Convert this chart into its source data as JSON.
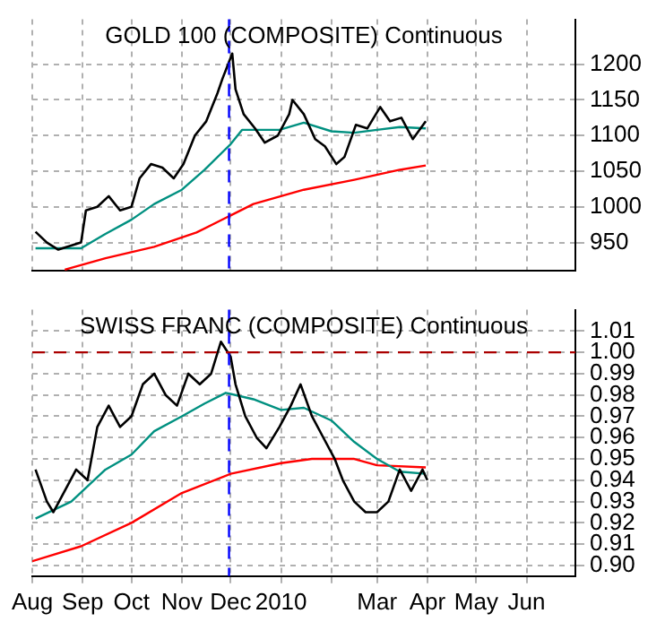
{
  "chart_data": [
    {
      "type": "line",
      "title": "GOLD 100 (COMPOSITE) Continuous",
      "xlim": [
        "2009-08-01",
        "2010-07-01"
      ],
      "ylim": [
        910,
        1263
      ],
      "yticks": [
        950,
        1000,
        1050,
        1100,
        1150,
        1200
      ],
      "xticks": [
        {
          "value": "2009-08-01",
          "label": null
        },
        {
          "value": "2009-09-01",
          "label": null
        },
        {
          "value": "2009-10-01",
          "label": null
        },
        {
          "value": "2009-11-01",
          "label": null
        },
        {
          "value": "2009-12-01",
          "label": null
        },
        {
          "value": "2010-01-01",
          "label": null
        },
        {
          "value": "2010-02-01",
          "label": null
        },
        {
          "value": "2010-03-01",
          "label": null
        },
        {
          "value": "2010-04-01",
          "label": null
        },
        {
          "value": "2010-05-01",
          "label": null
        },
        {
          "value": "2010-06-01",
          "label": null
        }
      ],
      "tick_labels": "y",
      "grid": true,
      "legend": false,
      "marker": "none",
      "series": [
        {
          "color": "#000000",
          "x": [
            "2009-08-03",
            "2009-08-10",
            "2009-08-17",
            "2009-08-24",
            "2009-08-31",
            "2009-09-03",
            "2009-09-10",
            "2009-09-17",
            "2009-09-24",
            "2009-10-01",
            "2009-10-06",
            "2009-10-13",
            "2009-10-20",
            "2009-10-27",
            "2009-11-02",
            "2009-11-09",
            "2009-11-16",
            "2009-11-23",
            "2009-11-26",
            "2009-12-02",
            "2009-12-04",
            "2009-12-09",
            "2009-12-16",
            "2009-12-22",
            "2009-12-30",
            "2010-01-06",
            "2010-01-08",
            "2010-01-15",
            "2010-01-22",
            "2010-01-28",
            "2010-02-04",
            "2010-02-09",
            "2010-02-16",
            "2010-02-23",
            "2010-03-03",
            "2010-03-09",
            "2010-03-16",
            "2010-03-23",
            "2010-03-31"
          ],
          "values": [
            965,
            950,
            940,
            945,
            950,
            995,
            1000,
            1015,
            995,
            1000,
            1040,
            1060,
            1055,
            1040,
            1060,
            1100,
            1120,
            1160,
            1180,
            1215,
            1165,
            1130,
            1110,
            1090,
            1100,
            1130,
            1150,
            1130,
            1095,
            1085,
            1060,
            1070,
            1115,
            1110,
            1140,
            1120,
            1125,
            1095,
            1120
          ]
        },
        {
          "color": "#009080",
          "x": [
            "2009-08-03",
            "2009-08-31",
            "2009-09-15",
            "2009-10-01",
            "2009-10-15",
            "2009-11-01",
            "2009-11-15",
            "2009-12-01",
            "2009-12-08",
            "2009-12-31",
            "2010-01-15",
            "2010-02-01",
            "2010-02-15",
            "2010-03-01",
            "2010-03-15",
            "2010-03-31"
          ],
          "values": [
            942,
            942,
            962,
            982,
            1004,
            1024,
            1052,
            1088,
            1108,
            1108,
            1118,
            1106,
            1104,
            1108,
            1112,
            1110
          ]
        },
        {
          "color": "#ff0000",
          "x": [
            "2009-08-21",
            "2009-09-15",
            "2009-10-15",
            "2009-11-10",
            "2009-12-01",
            "2009-12-15",
            "2010-01-15",
            "2010-02-15",
            "2010-03-15",
            "2010-03-31"
          ],
          "values": [
            912,
            928,
            944,
            964,
            988,
            1004,
            1024,
            1038,
            1052,
            1058
          ]
        }
      ],
      "ref_lines": [
        {
          "axis": "x",
          "value": "2009-11-30",
          "color": "#0000ff",
          "line_style": "dashed"
        }
      ]
    },
    {
      "type": "line",
      "title": "SWISS FRANC (COMPOSITE) Continuous",
      "xlim": [
        "2009-08-01",
        "2010-07-01"
      ],
      "ylim": [
        0.895,
        1.02
      ],
      "yticks": [
        {
          "value": 0.9,
          "label": "0.90"
        },
        0.91,
        0.92,
        0.93,
        0.94,
        0.95,
        0.96,
        0.97,
        0.98,
        0.99,
        {
          "value": 1,
          "label": "1.00"
        },
        1.01
      ],
      "xticks": [
        {
          "value": "2009-08-01",
          "label": "Aug"
        },
        {
          "value": "2009-09-01",
          "label": "Sep"
        },
        {
          "value": "2009-10-01",
          "label": "Oct"
        },
        {
          "value": "2009-11-01",
          "label": "Nov"
        },
        {
          "value": "2009-12-01",
          "label": "Dec"
        },
        {
          "value": "2010-01-01",
          "label": "2010"
        },
        {
          "value": "2010-02-01",
          "label": null
        },
        {
          "value": "2010-03-01",
          "label": "Mar"
        },
        {
          "value": "2010-04-01",
          "label": "Apr"
        },
        {
          "value": "2010-05-01",
          "label": "May"
        },
        {
          "value": "2010-06-01",
          "label": "Jun"
        }
      ],
      "grid": true,
      "legend": false,
      "marker": "none",
      "series": [
        {
          "color": "#000000",
          "x": [
            "2009-08-03",
            "2009-08-10",
            "2009-08-14",
            "2009-08-21",
            "2009-08-28",
            "2009-09-04",
            "2009-09-10",
            "2009-09-17",
            "2009-09-24",
            "2009-10-01",
            "2009-10-08",
            "2009-10-15",
            "2009-10-22",
            "2009-10-29",
            "2009-11-05",
            "2009-11-12",
            "2009-11-19",
            "2009-11-25",
            "2009-12-01",
            "2009-12-04",
            "2009-12-10",
            "2009-12-17",
            "2009-12-23",
            "2009-12-31",
            "2010-01-07",
            "2010-01-13",
            "2010-01-20",
            "2010-01-27",
            "2010-02-03",
            "2010-02-08",
            "2010-02-15",
            "2010-02-22",
            "2010-03-01",
            "2010-03-08",
            "2010-03-15",
            "2010-03-22",
            "2010-03-29",
            "2010-04-01"
          ],
          "values": [
            0.945,
            0.93,
            0.925,
            0.935,
            0.945,
            0.94,
            0.965,
            0.975,
            0.965,
            0.97,
            0.985,
            0.99,
            0.98,
            0.975,
            0.99,
            0.985,
            0.99,
            1.005,
            0.998,
            0.985,
            0.97,
            0.96,
            0.955,
            0.965,
            0.975,
            0.985,
            0.97,
            0.96,
            0.95,
            0.94,
            0.93,
            0.925,
            0.925,
            0.93,
            0.945,
            0.935,
            0.945,
            0.94
          ]
        },
        {
          "color": "#009080",
          "x": [
            "2009-08-03",
            "2009-08-25",
            "2009-09-15",
            "2009-10-01",
            "2009-10-15",
            "2009-11-01",
            "2009-11-15",
            "2009-11-28",
            "2009-12-15",
            "2010-01-01",
            "2010-01-15",
            "2010-02-01",
            "2010-02-15",
            "2010-03-01",
            "2010-03-15",
            "2010-03-31"
          ],
          "values": [
            0.922,
            0.93,
            0.945,
            0.952,
            0.963,
            0.97,
            0.976,
            0.981,
            0.978,
            0.973,
            0.974,
            0.968,
            0.958,
            0.95,
            0.944,
            0.943
          ]
        },
        {
          "color": "#ff0000",
          "x": [
            "2009-08-01",
            "2009-08-31",
            "2009-10-01",
            "2009-11-01",
            "2009-12-01",
            "2010-01-01",
            "2010-01-20",
            "2010-02-15",
            "2010-03-01",
            "2010-03-31"
          ],
          "values": [
            0.902,
            0.909,
            0.92,
            0.934,
            0.943,
            0.948,
            0.95,
            0.95,
            0.947,
            0.946
          ]
        }
      ],
      "ref_lines": [
        {
          "axis": "x",
          "value": "2009-11-30",
          "color": "#0000ff",
          "line_style": "dashed"
        },
        {
          "axis": "y",
          "value": 1,
          "color": "#aa0000",
          "line_style": "dashed"
        }
      ]
    }
  ]
}
